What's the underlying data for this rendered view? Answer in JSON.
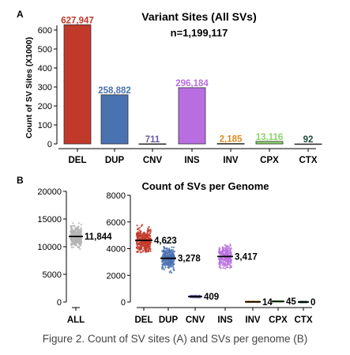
{
  "caption": "Figure 2. Count of SV sites (A) and SVs per genome (B)",
  "colors": {
    "DEL": "#c0392b",
    "DUP": "#4a72b0",
    "CNV": "#6c5aa3",
    "INS": "#b86ee0",
    "INV": "#e08a1e",
    "CPX": "#8ad46b",
    "CTX": "#1e4a3a",
    "ALL": "#b5b5b5"
  },
  "chart_data": [
    {
      "panel": "A",
      "type": "bar",
      "title": "Variant Sites (All SVs)",
      "subtitle": "n=1,199,117",
      "xlabel": "",
      "ylabel": "Count of SV Sites (X1000)",
      "ylim": [
        0,
        640
      ],
      "yticks": [
        0,
        100,
        200,
        300,
        400,
        500,
        600
      ],
      "categories": [
        "DEL",
        "DUP",
        "CNV",
        "INS",
        "INV",
        "CPX",
        "CTX"
      ],
      "values": [
        627.947,
        258.882,
        0.711,
        296.184,
        2.185,
        13.116,
        0.092
      ],
      "value_labels": [
        "627,947",
        "258,882",
        "711",
        "296,184",
        "2,185",
        "13,116",
        "92"
      ],
      "grid": false,
      "legend": "none"
    },
    {
      "panel": "B",
      "type": "scatter",
      "title": "Count of SVs per Genome",
      "xlabel": "",
      "ylabel": "",
      "left_axis": {
        "ylim": [
          0,
          20000
        ],
        "yticks": [
          0,
          5000,
          10000,
          15000,
          20000
        ],
        "categories": [
          "ALL"
        ],
        "medians": [
          11844
        ],
        "median_labels": [
          "11,844"
        ],
        "spread": [
          [
            8400,
            16100
          ]
        ]
      },
      "right_axis": {
        "ylim": [
          0,
          8000
        ],
        "yticks": [
          0,
          2000,
          4000,
          6000,
          8000
        ],
        "categories": [
          "DEL",
          "DUP",
          "CNV",
          "INS",
          "INV",
          "CPX",
          "CTX"
        ],
        "medians": [
          4623,
          3278,
          409,
          3417,
          14,
          45,
          0
        ],
        "median_labels": [
          "4,623",
          "3,278",
          "409",
          "3,417",
          "14",
          "45",
          "0"
        ],
        "spread": [
          [
            3700,
            7600
          ],
          [
            2200,
            5300
          ],
          [
            300,
            540
          ],
          [
            2500,
            5700
          ],
          [
            0,
            60
          ],
          [
            10,
            110
          ],
          [
            0,
            12
          ]
        ]
      },
      "grid": false,
      "legend": "none"
    }
  ]
}
